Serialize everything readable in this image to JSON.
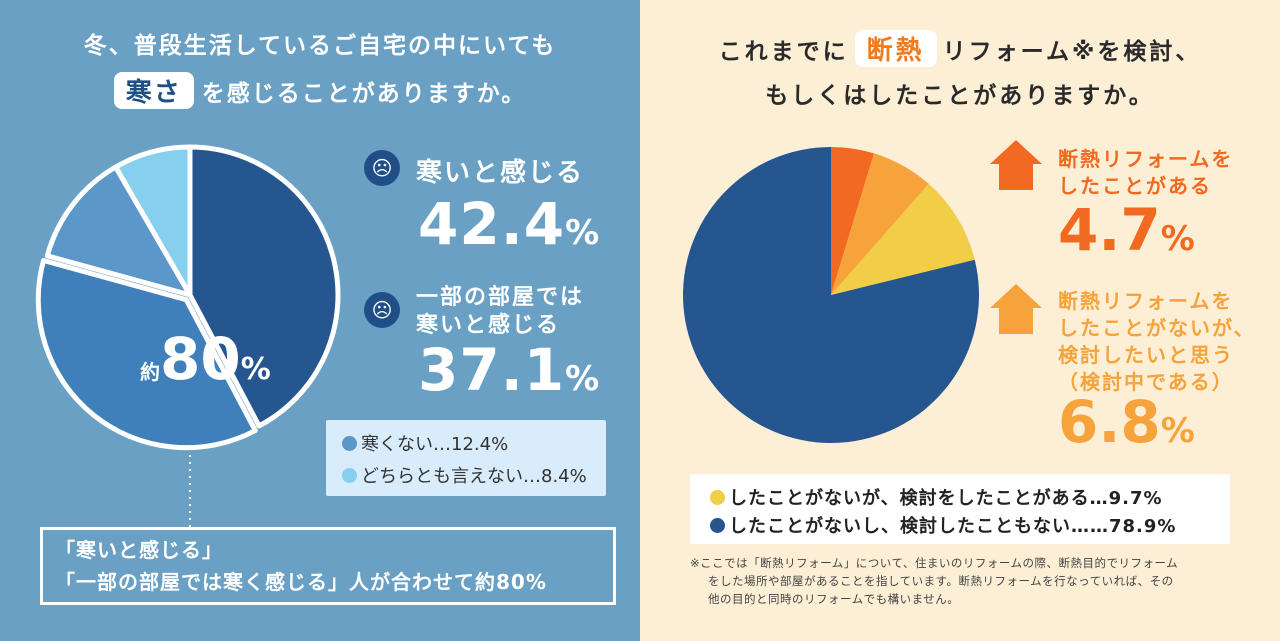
{
  "left": {
    "title_line1": "冬、普段生活しているご自宅の中にいても",
    "title_highlight": "寒さ",
    "title_line2": "を感じることがありますか。",
    "center_prefix": "約",
    "center_value": "80",
    "center_pct": "%",
    "stat1": {
      "icon": "sad-face-icon",
      "glyph": "☹",
      "label": "寒いと感じる",
      "value": "42.4",
      "pct": "%"
    },
    "stat2": {
      "icon": "frown-face-icon",
      "glyph": "☹",
      "label_line1": "一部の部屋では",
      "label_line2": "寒いと感じる",
      "value": "37.1",
      "pct": "%"
    },
    "legend": [
      {
        "label": "寒くない…12.4%",
        "color": "#5b97c8"
      },
      {
        "label": "どちらとも言えない…8.4%",
        "color": "#87cfee"
      }
    ],
    "note_line1": "「寒いと感じる」",
    "note_line2": "「一部の部屋では寒く感じる」人が合わせて約80%"
  },
  "right": {
    "title_part1": "これまでに",
    "title_highlight": "断熱",
    "title_part2": "リフォーム※を検討、",
    "title_line2": "もしくはしたことがありますか。",
    "stat1": {
      "icon": "house-icon",
      "label_line1": "断熱リフォームを",
      "label_line2": "したことがある",
      "value": "4.7",
      "pct": "%",
      "color": "#f26a21"
    },
    "stat2": {
      "icon": "house-icon",
      "label_line1": "断熱リフォームを",
      "label_line2": "したことがないが、",
      "label_line3": "検討したいと思う",
      "label_line4": "（検討中である）",
      "value": "6.8",
      "pct": "%",
      "color": "#f5a33a"
    },
    "legend": [
      {
        "label": "したことがないが、検討をしたことがある…9.7%",
        "color": "#f2cd48"
      },
      {
        "label": "したことがないし、検討したこともない……78.9%",
        "color": "#26568f"
      }
    ],
    "footnote_line1": "※ここでは「断熱リフォーム」について、住まいのリフォームの際、断熱目的でリフォーム",
    "footnote_line2": "をした場所や部屋があることを指しています。断熱リフォームを行なっていれば、その",
    "footnote_line3": "他の目的と同時のリフォームでも構いません。"
  },
  "chart_data": [
    {
      "type": "pie",
      "title": "冬、普段生活しているご自宅の中にいても寒さを感じることがありますか。",
      "categories": [
        "寒いと感じる",
        "一部の部屋では寒いと感じる",
        "寒くない",
        "どちらとも言えない"
      ],
      "values": [
        42.4,
        37.1,
        12.4,
        8.4
      ],
      "colors": [
        "#26568f",
        "#3f7fba",
        "#5b97c8",
        "#87cfee"
      ],
      "exploded": [
        "一部の部屋では寒いと感じる"
      ],
      "annotation": "約80%"
    },
    {
      "type": "pie",
      "title": "これまでに断熱リフォームを検討、もしくはしたことがありますか。",
      "categories": [
        "断熱リフォームをしたことがある",
        "断熱リフォームをしたことがないが、検討したいと思う（検討中である）",
        "したことがないが、検討をしたことがある",
        "したことがないし、検討したこともない"
      ],
      "values": [
        4.7,
        6.8,
        9.7,
        78.9
      ],
      "colors": [
        "#f26a21",
        "#f5a33a",
        "#f2cd48",
        "#26568f"
      ]
    }
  ]
}
